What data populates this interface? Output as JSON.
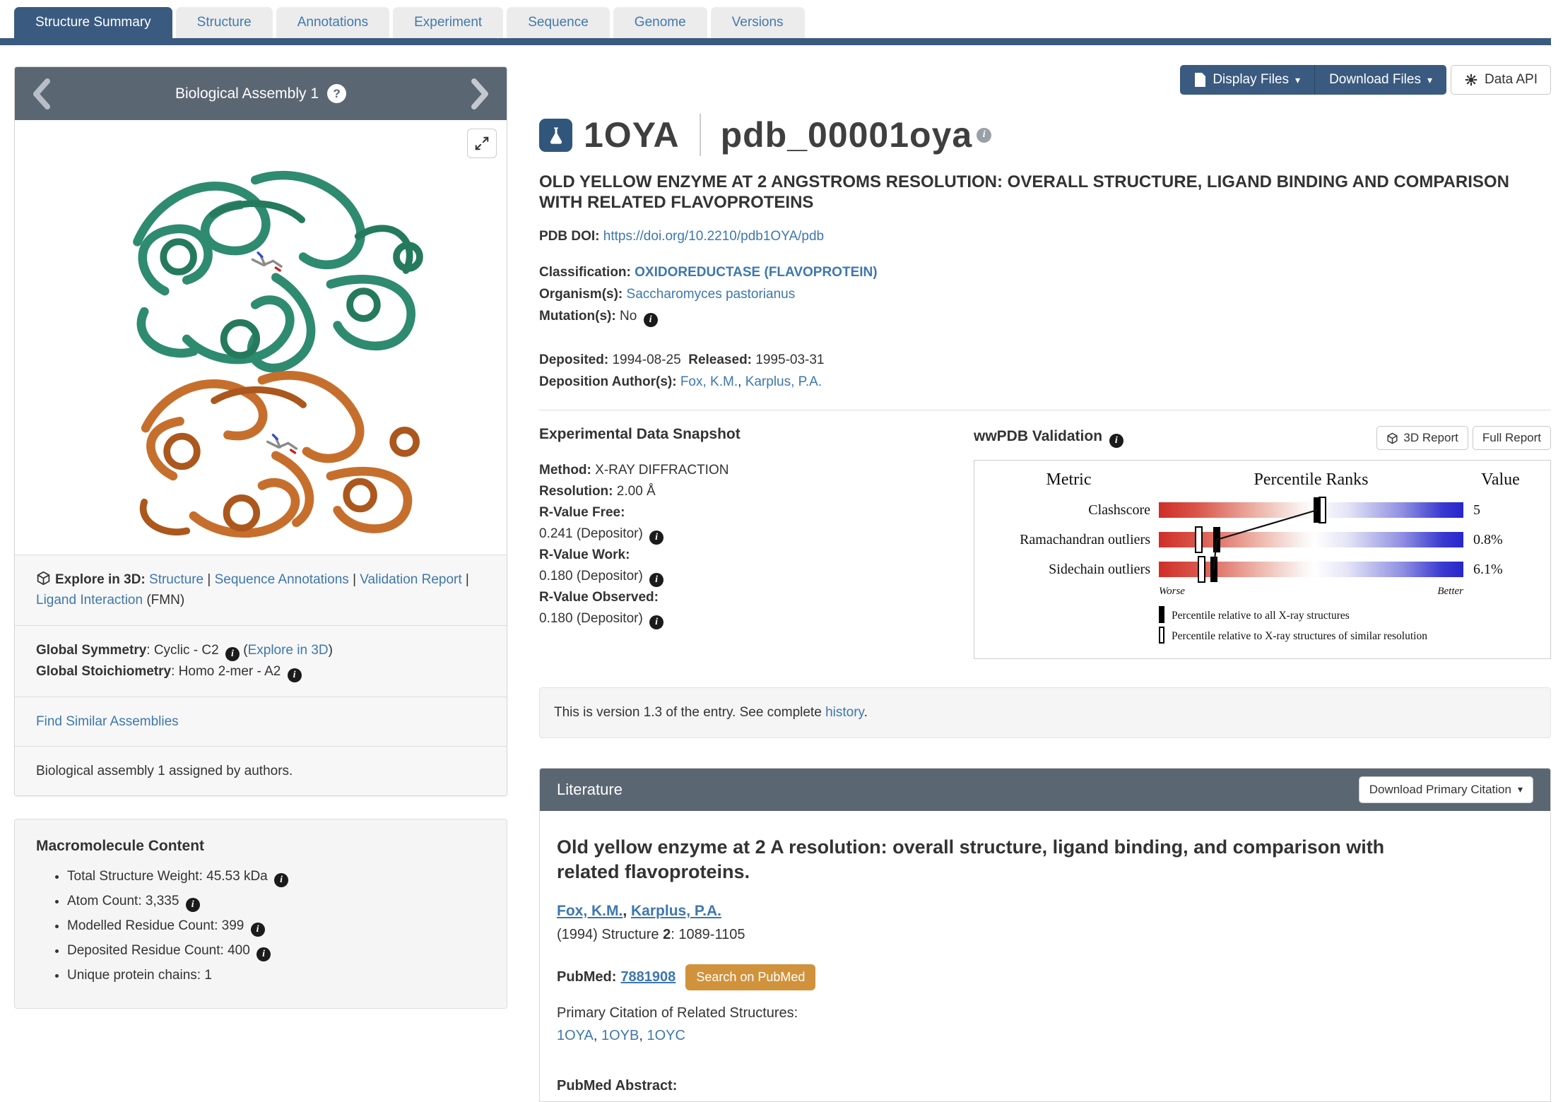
{
  "tabs": {
    "items": [
      {
        "label": "Structure Summary",
        "active": true
      },
      {
        "label": "Structure",
        "active": false
      },
      {
        "label": "Annotations",
        "active": false
      },
      {
        "label": "Experiment",
        "active": false
      },
      {
        "label": "Sequence",
        "active": false
      },
      {
        "label": "Genome",
        "active": false
      },
      {
        "label": "Versions",
        "active": false
      }
    ]
  },
  "toolbar": {
    "display_files": "Display Files",
    "download_files": "Download Files",
    "data_api": "Data API"
  },
  "assembly": {
    "title": "Biological Assembly 1",
    "explore_label": "Explore in 3D",
    "links": {
      "structure": "Structure",
      "sequence_annotations": "Sequence Annotations",
      "validation_report": "Validation Report",
      "ligand_interaction": "Ligand Interaction"
    },
    "ligand_suffix": "(FMN)",
    "symmetry_label": "Global Symmetry",
    "symmetry_value": ": Cyclic - C2",
    "symmetry_link": "(Explore in 3D)",
    "stoichiometry_label": "Global Stoichiometry",
    "stoichiometry_value": ": Homo 2-mer - A2",
    "find_similar": "Find Similar Assemblies",
    "note": "Biological assembly 1 assigned by authors."
  },
  "macromolecule": {
    "title": "Macromolecule Content",
    "items": [
      {
        "text": "Total Structure Weight: 45.53 kDa"
      },
      {
        "text": "Atom Count: 3,335"
      },
      {
        "text": "Modelled Residue Count: 399"
      },
      {
        "text": "Deposited Residue Count: 400"
      },
      {
        "text": "Unique protein chains: 1"
      }
    ]
  },
  "entry": {
    "id": "1OYA",
    "extended_id": "pdb_00001oya",
    "title": "OLD YELLOW ENZYME AT 2 ANGSTROMS RESOLUTION: OVERALL STRUCTURE, LIGAND BINDING AND COMPARISON WITH RELATED FLAVOPROTEINS",
    "doi_label": "PDB DOI:",
    "doi": "https://doi.org/10.2210/pdb1OYA/pdb",
    "classification_label": "Classification:",
    "classification": "OXIDOREDUCTASE (FLAVOPROTEIN)",
    "organism_label": "Organism(s):",
    "organism": "Saccharomyces pastorianus",
    "mutation_label": "Mutation(s):",
    "mutation": "No",
    "deposited_label": "Deposited:",
    "deposited": "1994-08-25",
    "released_label": "Released:",
    "released": "1995-03-31",
    "authors_label": "Deposition Author(s):",
    "author1": "Fox, K.M.",
    "author2": "Karplus, P.A."
  },
  "experimental": {
    "heading": "Experimental Data Snapshot",
    "method_label": "Method:",
    "method": "X-RAY DIFFRACTION",
    "resolution_label": "Resolution:",
    "resolution": "2.00 Å",
    "rfree_label": "R-Value Free:",
    "rfree": "0.241 (Depositor)",
    "rwork_label": "R-Value Work:",
    "rwork": "0.180 (Depositor)",
    "robs_label": "R-Value Observed:",
    "robs": "0.180 (Depositor)"
  },
  "validation": {
    "heading": "wwPDB Validation",
    "report3d": "3D Report",
    "full_report": "Full Report",
    "chart": {
      "type": "bar",
      "columns": {
        "metric": "Metric",
        "percentile": "Percentile Ranks",
        "value": "Value"
      },
      "rows": [
        {
          "metric": "Clashscore",
          "value": "5",
          "all": 0.52,
          "similar": 0.535
        },
        {
          "metric": "Ramachandran outliers",
          "value": "0.8%",
          "all": 0.19,
          "similar": 0.13
        },
        {
          "metric": "Sidechain outliers",
          "value": "6.1%",
          "all": 0.18,
          "similar": 0.14
        }
      ],
      "worse": "Worse",
      "better": "Better",
      "legend_all": "Percentile relative to all X-ray structures",
      "legend_similar": "Percentile relative to X-ray structures of similar resolution"
    }
  },
  "version_banner": {
    "prefix": "This is version 1.3 of the entry. See complete ",
    "link": "history",
    "suffix": "."
  },
  "literature": {
    "heading": "Literature",
    "download_button": "Download Primary Citation",
    "citation_title": "Old yellow enzyme at 2 A resolution: overall structure, ligand binding, and comparison with related flavoproteins.",
    "author1": "Fox, K.M.",
    "author2": "Karplus, P.A.",
    "journal_prefix": "(1994) Structure ",
    "journal_volume": "2",
    "journal_pages": ": 1089-1105",
    "pubmed_label": "PubMed:",
    "pubmed_id": "7881908",
    "search_button": "Search on PubMed",
    "related_label": "Primary Citation of Related Structures:",
    "related1": "1OYA",
    "related2": "1OYB",
    "related3": "1OYC",
    "abstract_label": "PubMed Abstract:"
  },
  "colors": {
    "accent": "#3a5a80",
    "header_gray": "#5b6673",
    "link_blue": "#3d77af",
    "orange_button": "#d1923c",
    "green_subunit": "#2e8b6f",
    "orange_subunit": "#c66f2d"
  }
}
